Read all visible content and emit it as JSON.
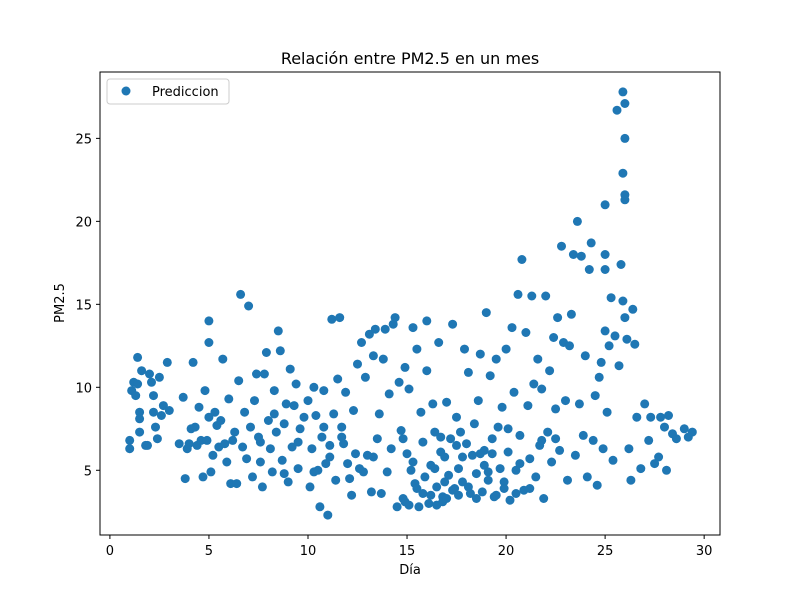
{
  "chart_data": {
    "type": "scatter",
    "title": "Relación entre PM2.5 en un mes",
    "xlabel": "Día",
    "ylabel": "PM2.5",
    "xlim": [
      -0.5,
      30.8
    ],
    "ylim": [
      1.1,
      29.0
    ],
    "xticks": [
      0,
      5,
      10,
      15,
      20,
      25,
      30
    ],
    "yticks": [
      5,
      10,
      15,
      20,
      25
    ],
    "grid": false,
    "legend_position": "top-left",
    "series": [
      {
        "name": "Prediccion",
        "color": "#1f77b4",
        "points": [
          [
            1.0,
            6.3
          ],
          [
            1.0,
            6.8
          ],
          [
            1.1,
            9.8
          ],
          [
            1.2,
            10.3
          ],
          [
            1.3,
            9.5
          ],
          [
            1.4,
            11.8
          ],
          [
            1.4,
            10.2
          ],
          [
            1.5,
            8.5
          ],
          [
            1.5,
            8.1
          ],
          [
            1.5,
            7.3
          ],
          [
            1.6,
            11.0
          ],
          [
            1.8,
            6.5
          ],
          [
            1.9,
            6.5
          ],
          [
            2.0,
            10.8
          ],
          [
            2.1,
            10.3
          ],
          [
            2.2,
            9.5
          ],
          [
            2.2,
            8.5
          ],
          [
            2.3,
            7.6
          ],
          [
            2.4,
            6.9
          ],
          [
            2.5,
            10.6
          ],
          [
            2.6,
            8.3
          ],
          [
            2.7,
            8.9
          ],
          [
            2.9,
            11.5
          ],
          [
            3.0,
            8.6
          ],
          [
            3.5,
            6.6
          ],
          [
            3.7,
            9.4
          ],
          [
            3.8,
            4.5
          ],
          [
            3.9,
            6.3
          ],
          [
            4.0,
            6.6
          ],
          [
            4.1,
            7.5
          ],
          [
            4.2,
            11.5
          ],
          [
            4.3,
            7.6
          ],
          [
            4.4,
            6.5
          ],
          [
            4.5,
            8.8
          ],
          [
            4.6,
            6.8
          ],
          [
            4.7,
            4.6
          ],
          [
            4.8,
            9.8
          ],
          [
            4.9,
            6.8
          ],
          [
            5.0,
            8.2
          ],
          [
            5.0,
            12.7
          ],
          [
            5.0,
            14.0
          ],
          [
            5.1,
            4.9
          ],
          [
            5.2,
            5.9
          ],
          [
            5.3,
            8.5
          ],
          [
            5.4,
            7.7
          ],
          [
            5.5,
            6.4
          ],
          [
            5.6,
            8.0
          ],
          [
            5.7,
            11.7
          ],
          [
            5.8,
            6.6
          ],
          [
            5.9,
            5.5
          ],
          [
            6.0,
            9.3
          ],
          [
            6.1,
            4.2
          ],
          [
            6.2,
            6.8
          ],
          [
            6.3,
            7.3
          ],
          [
            6.4,
            4.2
          ],
          [
            6.5,
            10.4
          ],
          [
            6.6,
            15.6
          ],
          [
            6.7,
            6.4
          ],
          [
            6.8,
            8.5
          ],
          [
            6.9,
            5.7
          ],
          [
            7.0,
            14.9
          ],
          [
            7.1,
            7.6
          ],
          [
            7.2,
            4.6
          ],
          [
            7.3,
            9.2
          ],
          [
            7.4,
            10.8
          ],
          [
            7.5,
            7.0
          ],
          [
            7.6,
            5.5
          ],
          [
            7.7,
            4.0
          ],
          [
            7.8,
            10.8
          ],
          [
            7.9,
            12.1
          ],
          [
            8.0,
            8.0
          ],
          [
            8.1,
            6.3
          ],
          [
            8.2,
            4.9
          ],
          [
            8.3,
            9.8
          ],
          [
            8.4,
            7.3
          ],
          [
            8.5,
            13.4
          ],
          [
            8.6,
            12.2
          ],
          [
            8.7,
            5.6
          ],
          [
            8.8,
            7.8
          ],
          [
            8.9,
            9.0
          ],
          [
            9.0,
            4.3
          ],
          [
            9.1,
            11.1
          ],
          [
            9.2,
            6.4
          ],
          [
            9.3,
            8.9
          ],
          [
            9.4,
            10.2
          ],
          [
            9.5,
            5.1
          ],
          [
            9.6,
            7.5
          ],
          [
            10.0,
            9.2
          ],
          [
            10.1,
            4.0
          ],
          [
            10.2,
            6.3
          ],
          [
            10.3,
            10.0
          ],
          [
            10.4,
            8.3
          ],
          [
            10.5,
            5.0
          ],
          [
            10.6,
            2.8
          ],
          [
            10.7,
            7.0
          ],
          [
            10.8,
            9.8
          ],
          [
            10.9,
            5.4
          ],
          [
            11.0,
            2.3
          ],
          [
            11.1,
            6.5
          ],
          [
            11.2,
            14.1
          ],
          [
            11.3,
            8.4
          ],
          [
            11.4,
            4.4
          ],
          [
            11.5,
            10.5
          ],
          [
            11.6,
            14.2
          ],
          [
            11.7,
            7.6
          ],
          [
            11.8,
            6.6
          ],
          [
            11.9,
            9.7
          ],
          [
            12.0,
            5.4
          ],
          [
            12.1,
            4.5
          ],
          [
            12.2,
            3.5
          ],
          [
            12.3,
            8.6
          ],
          [
            12.4,
            6.0
          ],
          [
            12.5,
            11.4
          ],
          [
            12.7,
            12.7
          ],
          [
            12.8,
            4.9
          ],
          [
            12.9,
            10.6
          ],
          [
            13.0,
            5.9
          ],
          [
            13.1,
            13.2
          ],
          [
            13.2,
            3.7
          ],
          [
            13.3,
            11.9
          ],
          [
            13.4,
            13.5
          ],
          [
            13.5,
            6.9
          ],
          [
            13.6,
            8.4
          ],
          [
            13.7,
            3.6
          ],
          [
            13.8,
            11.7
          ],
          [
            13.9,
            13.5
          ],
          [
            14.0,
            4.9
          ],
          [
            14.1,
            9.6
          ],
          [
            14.2,
            6.3
          ],
          [
            14.3,
            13.8
          ],
          [
            14.4,
            14.2
          ],
          [
            14.5,
            2.8
          ],
          [
            14.6,
            10.3
          ],
          [
            14.7,
            7.4
          ],
          [
            14.8,
            3.3
          ],
          [
            14.9,
            11.2
          ],
          [
            15.0,
            6.0
          ],
          [
            15.1,
            9.9
          ],
          [
            15.2,
            5.0
          ],
          [
            15.3,
            13.6
          ],
          [
            15.4,
            4.2
          ],
          [
            15.5,
            12.3
          ],
          [
            15.6,
            2.8
          ],
          [
            15.7,
            8.5
          ],
          [
            15.8,
            6.7
          ],
          [
            15.9,
            4.6
          ],
          [
            16.0,
            11.0
          ],
          [
            16.0,
            14.0
          ],
          [
            16.1,
            3.0
          ],
          [
            16.2,
            5.3
          ],
          [
            16.3,
            9.0
          ],
          [
            16.4,
            7.3
          ],
          [
            16.5,
            4.0
          ],
          [
            16.6,
            12.7
          ],
          [
            16.7,
            6.1
          ],
          [
            16.8,
            3.4
          ],
          [
            16.9,
            5.8
          ],
          [
            17.0,
            9.1
          ],
          [
            17.1,
            4.7
          ],
          [
            17.2,
            6.9
          ],
          [
            17.3,
            13.8
          ],
          [
            17.4,
            3.9
          ],
          [
            17.5,
            8.2
          ],
          [
            17.6,
            5.1
          ],
          [
            17.7,
            7.3
          ],
          [
            17.8,
            4.3
          ],
          [
            17.9,
            12.3
          ],
          [
            18.0,
            6.6
          ],
          [
            18.1,
            10.9
          ],
          [
            18.2,
            3.6
          ],
          [
            18.3,
            5.9
          ],
          [
            18.4,
            7.8
          ],
          [
            18.5,
            4.8
          ],
          [
            18.6,
            9.2
          ],
          [
            18.7,
            12.0
          ],
          [
            18.8,
            3.7
          ],
          [
            18.9,
            6.2
          ],
          [
            19.0,
            14.5
          ],
          [
            19.1,
            4.4
          ],
          [
            19.2,
            10.7
          ],
          [
            19.3,
            6.0
          ],
          [
            19.4,
            3.4
          ],
          [
            19.5,
            11.7
          ],
          [
            19.6,
            7.6
          ],
          [
            19.7,
            5.1
          ],
          [
            19.8,
            8.8
          ],
          [
            19.9,
            4.3
          ],
          [
            20.0,
            12.3
          ],
          [
            20.1,
            6.1
          ],
          [
            20.2,
            3.2
          ],
          [
            20.3,
            13.6
          ],
          [
            20.4,
            9.7
          ],
          [
            20.5,
            5.0
          ],
          [
            20.6,
            15.6
          ],
          [
            20.7,
            7.1
          ],
          [
            20.8,
            17.7
          ],
          [
            20.9,
            3.8
          ],
          [
            21.0,
            13.3
          ],
          [
            21.1,
            8.9
          ],
          [
            21.2,
            5.7
          ],
          [
            21.3,
            15.5
          ],
          [
            21.4,
            10.2
          ],
          [
            21.5,
            4.6
          ],
          [
            21.6,
            11.7
          ],
          [
            21.7,
            6.5
          ],
          [
            21.8,
            9.9
          ],
          [
            21.9,
            3.3
          ],
          [
            22.0,
            15.5
          ],
          [
            22.1,
            7.3
          ],
          [
            22.2,
            11.0
          ],
          [
            22.3,
            5.5
          ],
          [
            22.4,
            13.0
          ],
          [
            22.5,
            8.7
          ],
          [
            22.6,
            14.2
          ],
          [
            22.7,
            6.2
          ],
          [
            22.8,
            18.5
          ],
          [
            22.9,
            12.7
          ],
          [
            23.0,
            9.2
          ],
          [
            23.1,
            4.4
          ],
          [
            23.2,
            12.5
          ],
          [
            23.3,
            14.4
          ],
          [
            23.4,
            18.0
          ],
          [
            23.5,
            5.9
          ],
          [
            23.6,
            20.0
          ],
          [
            23.7,
            9.0
          ],
          [
            23.8,
            17.9
          ],
          [
            23.9,
            7.1
          ],
          [
            24.0,
            11.9
          ],
          [
            24.1,
            4.6
          ],
          [
            24.2,
            17.1
          ],
          [
            24.3,
            18.7
          ],
          [
            24.4,
            6.8
          ],
          [
            24.5,
            9.5
          ],
          [
            24.6,
            4.1
          ],
          [
            24.7,
            10.6
          ],
          [
            24.8,
            11.5
          ],
          [
            24.9,
            6.3
          ],
          [
            25.0,
            13.4
          ],
          [
            25.0,
            18.0
          ],
          [
            25.0,
            17.1
          ],
          [
            25.0,
            21.0
          ],
          [
            25.1,
            8.5
          ],
          [
            25.2,
            12.5
          ],
          [
            25.3,
            15.4
          ],
          [
            25.4,
            5.6
          ],
          [
            25.5,
            13.1
          ],
          [
            25.6,
            26.7
          ],
          [
            25.7,
            11.3
          ],
          [
            25.8,
            17.4
          ],
          [
            25.9,
            27.8
          ],
          [
            25.9,
            22.9
          ],
          [
            25.9,
            15.2
          ],
          [
            26.0,
            27.1
          ],
          [
            26.0,
            25.0
          ],
          [
            26.0,
            21.6
          ],
          [
            26.0,
            21.3
          ],
          [
            26.0,
            14.2
          ],
          [
            26.1,
            12.9
          ],
          [
            26.2,
            6.3
          ],
          [
            26.3,
            4.4
          ],
          [
            26.4,
            14.7
          ],
          [
            26.5,
            12.6
          ],
          [
            26.6,
            8.2
          ],
          [
            26.8,
            5.1
          ],
          [
            27.0,
            9.0
          ],
          [
            27.2,
            6.8
          ],
          [
            27.3,
            8.2
          ],
          [
            27.5,
            5.4
          ],
          [
            27.7,
            5.8
          ],
          [
            27.8,
            8.2
          ],
          [
            28.0,
            7.6
          ],
          [
            28.1,
            5.0
          ],
          [
            28.2,
            8.3
          ],
          [
            28.4,
            7.2
          ],
          [
            28.6,
            6.9
          ],
          [
            29.0,
            7.5
          ],
          [
            29.2,
            7.0
          ],
          [
            29.4,
            7.3
          ],
          [
            16.2,
            3.5
          ],
          [
            16.5,
            2.9
          ],
          [
            16.8,
            3.1
          ],
          [
            17.0,
            3.3
          ],
          [
            15.8,
            3.6
          ],
          [
            15.5,
            3.9
          ],
          [
            16.9,
            4.3
          ],
          [
            17.3,
            3.8
          ],
          [
            18.5,
            3.3
          ],
          [
            19.5,
            3.5
          ],
          [
            20.5,
            3.6
          ],
          [
            21.2,
            3.9
          ],
          [
            14.9,
            3.1
          ],
          [
            15.1,
            2.9
          ],
          [
            17.6,
            3.5
          ],
          [
            18.1,
            4.0
          ],
          [
            19.9,
            3.9
          ],
          [
            16.4,
            5.1
          ],
          [
            17.8,
            5.8
          ],
          [
            18.7,
            6.0
          ],
          [
            19.3,
            6.9
          ],
          [
            20.1,
            7.5
          ],
          [
            15.3,
            5.5
          ],
          [
            14.8,
            6.9
          ],
          [
            16.7,
            7.0
          ],
          [
            17.5,
            6.5
          ],
          [
            18.9,
            5.3
          ],
          [
            19.1,
            4.9
          ],
          [
            20.7,
            5.4
          ],
          [
            21.8,
            6.8
          ],
          [
            22.5,
            6.9
          ],
          [
            8.8,
            4.8
          ],
          [
            9.5,
            6.7
          ],
          [
            10.3,
            4.9
          ],
          [
            11.1,
            5.8
          ],
          [
            12.6,
            5.1
          ],
          [
            13.3,
            5.8
          ],
          [
            7.6,
            6.7
          ],
          [
            8.3,
            8.4
          ],
          [
            9.8,
            8.2
          ],
          [
            10.8,
            7.6
          ],
          [
            11.7,
            7.0
          ]
        ]
      }
    ]
  }
}
